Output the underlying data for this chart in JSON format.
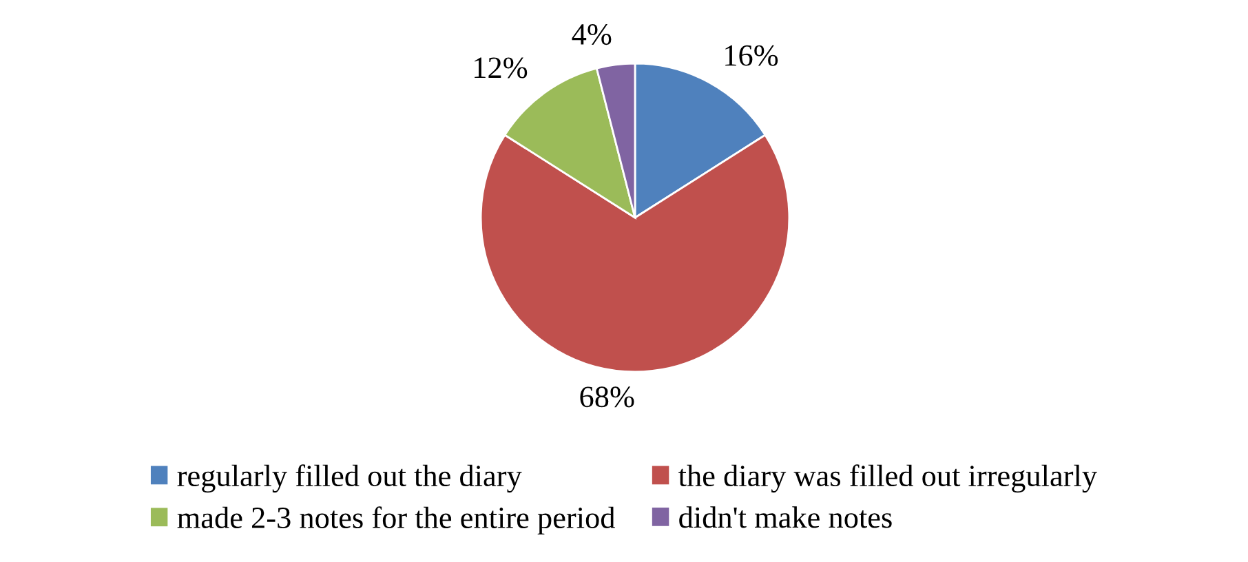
{
  "chart_data": {
    "type": "pie",
    "categories": [
      "regularly filled out the diary",
      "the diary was filled out irregularly",
      "made 2-3 notes for the entire period",
      "didn't make notes"
    ],
    "values": [
      16,
      68,
      12,
      4
    ],
    "colors": [
      "#4f81bd",
      "#c0504d",
      "#9bbb59",
      "#8064a2"
    ],
    "value_labels": [
      "16%",
      "68%",
      "12%",
      "4%"
    ],
    "legend": "bottom"
  }
}
